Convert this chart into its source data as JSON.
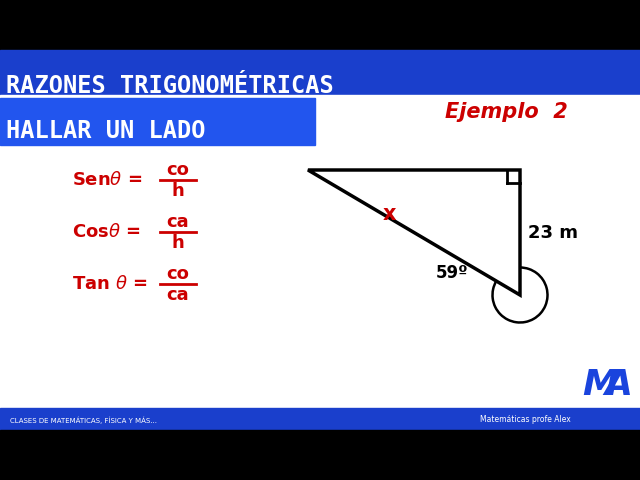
{
  "bg_top": "#000000",
  "bg_main": "#ffffff",
  "blue_banner_color": "#1a3fcc",
  "title_line1": "RAZONES TRIGONOMÉTRICAS",
  "title_line2": "HALLAR UN LADO",
  "title_color": "#ffffff",
  "ejemplo_text": "Ejemplo  2",
  "ejemplo_color": "#cc0000",
  "formula_color": "#cc0000",
  "triangle_color": "#000000",
  "angle_label": "59º",
  "side_label": "23 m",
  "hyp_label": "x",
  "footer_left": "CLASES DE MATEMÁTICAS, FÍSICA Y MÁS...",
  "footer_right": "Matemáticas profe Alex",
  "footer_bg": "#1a3fcc",
  "footer_color": "#ffffff"
}
